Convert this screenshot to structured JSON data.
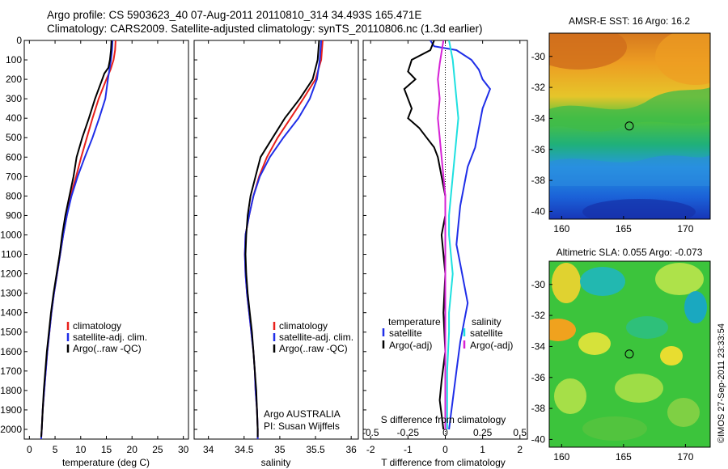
{
  "header": {
    "line1": "Argo profile: CS 5903623_40 07-Aug-2011 20110810_314 34.493S 165.471E",
    "line2": "Climatology: CARS2009. Satellite-adjusted climatology: synTS_20110806.nc (1.3d earlier)"
  },
  "stamp": "©IMOS 27-Sep-2011 23:33:54",
  "colors": {
    "climatology": "#e8201c",
    "satellite": "#1f2ee8",
    "argo": "#000000",
    "sat_salinity": "#1ee0e0",
    "argo_salinity": "#d622d6"
  },
  "chart_data": [
    {
      "type": "line",
      "xlabel": "temperature (deg C)",
      "ylabel": "",
      "xlim": [
        -1,
        31
      ],
      "ylim": [
        2050,
        0
      ],
      "xticks": [
        0,
        5,
        10,
        15,
        20,
        25,
        30
      ],
      "yticks": [
        0,
        100,
        200,
        300,
        400,
        500,
        600,
        700,
        800,
        900,
        1000,
        1100,
        1200,
        1300,
        1400,
        1500,
        1600,
        1700,
        1800,
        1900,
        2000
      ],
      "legend": [
        "climatology",
        "satellite-adj. clim.",
        "Argo(..raw -QC)"
      ],
      "series": [
        {
          "name": "climatology",
          "color": "#e8201c",
          "points": [
            [
              16.8,
              0
            ],
            [
              16.7,
              50
            ],
            [
              16.4,
              100
            ],
            [
              15.8,
              150
            ],
            [
              15.0,
              200
            ],
            [
              13.5,
              300
            ],
            [
              12.3,
              400
            ],
            [
              11.2,
              500
            ],
            [
              10.1,
              600
            ],
            [
              9.1,
              700
            ],
            [
              8.0,
              800
            ],
            [
              7.3,
              900
            ],
            [
              6.6,
              1000
            ],
            [
              6.0,
              1100
            ],
            [
              5.4,
              1200
            ],
            [
              4.8,
              1300
            ],
            [
              4.3,
              1400
            ],
            [
              3.9,
              1500
            ],
            [
              3.5,
              1600
            ],
            [
              3.2,
              1700
            ],
            [
              2.9,
              1800
            ],
            [
              2.6,
              1900
            ],
            [
              2.4,
              2000
            ],
            [
              2.3,
              2050
            ]
          ]
        },
        {
          "name": "satellite-adj. clim.",
          "color": "#1f2ee8",
          "points": [
            [
              16.2,
              0
            ],
            [
              16.1,
              50
            ],
            [
              15.9,
              100
            ],
            [
              15.6,
              150
            ],
            [
              15.3,
              200
            ],
            [
              14.8,
              300
            ],
            [
              13.6,
              400
            ],
            [
              12.3,
              500
            ],
            [
              10.8,
              600
            ],
            [
              9.4,
              700
            ],
            [
              8.2,
              800
            ],
            [
              7.3,
              900
            ],
            [
              6.6,
              1000
            ],
            [
              6.0,
              1100
            ],
            [
              5.4,
              1200
            ],
            [
              4.8,
              1300
            ],
            [
              4.3,
              1400
            ],
            [
              3.9,
              1500
            ],
            [
              3.5,
              1600
            ],
            [
              3.2,
              1700
            ],
            [
              2.9,
              1800
            ],
            [
              2.6,
              1900
            ],
            [
              2.4,
              2000
            ],
            [
              2.3,
              2050
            ]
          ]
        },
        {
          "name": "Argo(..raw -QC)",
          "color": "#000000",
          "points": [
            [
              16.0,
              0
            ],
            [
              15.9,
              50
            ],
            [
              15.7,
              100
            ],
            [
              15.4,
              140
            ],
            [
              14.6,
              170
            ],
            [
              14.2,
              200
            ],
            [
              12.8,
              300
            ],
            [
              11.6,
              400
            ],
            [
              10.3,
              500
            ],
            [
              9.2,
              600
            ],
            [
              8.6,
              700
            ],
            [
              7.8,
              800
            ],
            [
              7.0,
              900
            ],
            [
              6.4,
              1000
            ],
            [
              5.9,
              1100
            ],
            [
              5.3,
              1200
            ],
            [
              4.7,
              1300
            ],
            [
              4.2,
              1400
            ],
            [
              3.8,
              1500
            ],
            [
              3.4,
              1600
            ],
            [
              3.1,
              1700
            ],
            [
              2.8,
              1800
            ],
            [
              2.6,
              1900
            ],
            [
              2.4,
              2000
            ],
            [
              2.3,
              2040
            ]
          ]
        }
      ]
    },
    {
      "type": "line",
      "xlabel": "salinity",
      "xlim": [
        33.8,
        36.1
      ],
      "ylim": [
        2050,
        0
      ],
      "xticks": [
        34,
        34.5,
        35,
        35.5,
        36
      ],
      "xticklabels": [
        "34",
        "34.5",
        "35",
        "35.5",
        "36"
      ],
      "legend": [
        "climatology",
        "satellite-adj. clim.",
        "Argo(..raw -QC)"
      ],
      "annotation": [
        "Argo AUSTRALIA",
        "PI: Susan Wijffels"
      ],
      "series": [
        {
          "name": "climatology",
          "color": "#e8201c",
          "points": [
            [
              35.6,
              0
            ],
            [
              35.58,
              100
            ],
            [
              35.5,
              200
            ],
            [
              35.33,
              300
            ],
            [
              35.15,
              400
            ],
            [
              34.97,
              500
            ],
            [
              34.82,
              600
            ],
            [
              34.71,
              700
            ],
            [
              34.63,
              800
            ],
            [
              34.57,
              900
            ],
            [
              34.52,
              1000
            ],
            [
              34.51,
              1100
            ],
            [
              34.52,
              1200
            ],
            [
              34.54,
              1300
            ],
            [
              34.57,
              1400
            ],
            [
              34.6,
              1500
            ],
            [
              34.63,
              1600
            ],
            [
              34.65,
              1700
            ],
            [
              34.66,
              1800
            ],
            [
              34.68,
              1900
            ],
            [
              34.69,
              2000
            ],
            [
              34.69,
              2050
            ]
          ]
        },
        {
          "name": "satellite-adj. clim.",
          "color": "#1f2ee8",
          "points": [
            [
              35.58,
              0
            ],
            [
              35.56,
              100
            ],
            [
              35.52,
              200
            ],
            [
              35.42,
              300
            ],
            [
              35.26,
              400
            ],
            [
              35.05,
              500
            ],
            [
              34.86,
              600
            ],
            [
              34.72,
              700
            ],
            [
              34.63,
              800
            ],
            [
              34.57,
              900
            ],
            [
              34.52,
              1000
            ],
            [
              34.51,
              1100
            ],
            [
              34.52,
              1200
            ],
            [
              34.54,
              1300
            ],
            [
              34.57,
              1400
            ],
            [
              34.6,
              1500
            ],
            [
              34.63,
              1600
            ],
            [
              34.65,
              1700
            ],
            [
              34.66,
              1800
            ],
            [
              34.68,
              1900
            ],
            [
              34.69,
              2000
            ],
            [
              34.69,
              2050
            ]
          ]
        },
        {
          "name": "Argo(..raw -QC)",
          "color": "#000000",
          "points": [
            [
              35.55,
              0
            ],
            [
              35.53,
              100
            ],
            [
              35.46,
              200
            ],
            [
              35.28,
              300
            ],
            [
              35.07,
              400
            ],
            [
              34.9,
              500
            ],
            [
              34.73,
              600
            ],
            [
              34.66,
              700
            ],
            [
              34.59,
              800
            ],
            [
              34.55,
              900
            ],
            [
              34.53,
              1000
            ],
            [
              34.52,
              1100
            ],
            [
              34.53,
              1200
            ],
            [
              34.55,
              1300
            ],
            [
              34.58,
              1400
            ],
            [
              34.61,
              1500
            ],
            [
              34.63,
              1600
            ],
            [
              34.65,
              1700
            ],
            [
              34.67,
              1800
            ],
            [
              34.68,
              1900
            ],
            [
              34.69,
              2000
            ],
            [
              34.69,
              2040
            ]
          ]
        }
      ]
    },
    {
      "type": "line",
      "xlabel": "T difference from climatology",
      "xlabel_top": "S difference from climatology",
      "xlim": [
        -2.2,
        2.2
      ],
      "ylim": [
        2050,
        0
      ],
      "xticks": [
        -2,
        -1,
        0,
        1,
        2
      ],
      "xticks_top": [
        -0.5,
        -0.25,
        0,
        0.25,
        0.5
      ],
      "xticklabels_top": [
        "-0.5",
        "-0.25",
        "0",
        "0.25",
        "0.5"
      ],
      "legend_temperature": [
        "temperature",
        "satellite",
        "Argo(-adj)"
      ],
      "legend_salinity": [
        "salinity",
        "satellite",
        "Argo(-adj)"
      ],
      "series": [
        {
          "name": "temperature satellite",
          "color": "#1f2ee8",
          "points": [
            [
              -0.4,
              0
            ],
            [
              -0.3,
              30
            ],
            [
              0.3,
              50
            ],
            [
              0.7,
              100
            ],
            [
              0.9,
              150
            ],
            [
              1.0,
              200
            ],
            [
              1.2,
              250
            ],
            [
              1.0,
              350
            ],
            [
              0.9,
              450
            ],
            [
              0.8,
              550
            ],
            [
              0.6,
              650
            ],
            [
              0.5,
              750
            ],
            [
              0.4,
              850
            ],
            [
              0.35,
              950
            ],
            [
              0.3,
              1050
            ],
            [
              0.4,
              1150
            ],
            [
              0.5,
              1250
            ],
            [
              0.6,
              1350
            ],
            [
              0.5,
              1450
            ],
            [
              0.4,
              1550
            ],
            [
              0.3,
              1700
            ],
            [
              0.2,
              1850
            ],
            [
              0.1,
              2000
            ]
          ]
        },
        {
          "name": "temperature Argo(-adj)",
          "color": "#000000",
          "points": [
            [
              -0.3,
              0
            ],
            [
              -0.4,
              50
            ],
            [
              -0.9,
              100
            ],
            [
              -1.0,
              160
            ],
            [
              -0.8,
              200
            ],
            [
              -1.1,
              250
            ],
            [
              -1.0,
              300
            ],
            [
              -0.9,
              350
            ],
            [
              -1.0,
              400
            ],
            [
              -0.7,
              450
            ],
            [
              -0.5,
              500
            ],
            [
              -0.3,
              550
            ],
            [
              -0.2,
              600
            ],
            [
              -0.1,
              700
            ],
            [
              0.0,
              800
            ],
            [
              0.0,
              900
            ],
            [
              -0.1,
              1000
            ],
            [
              -0.05,
              1100
            ],
            [
              0.0,
              1200
            ],
            [
              -0.05,
              1400
            ],
            [
              0.0,
              1600
            ],
            [
              -0.1,
              1750
            ],
            [
              -0.15,
              1850
            ],
            [
              -0.05,
              2000
            ]
          ]
        },
        {
          "name": "salinity satellite",
          "color": "#1ee0e0",
          "points": [
            [
              0.1,
              0
            ],
            [
              0.2,
              100
            ],
            [
              0.25,
              200
            ],
            [
              0.3,
              300
            ],
            [
              0.35,
              400
            ],
            [
              0.3,
              500
            ],
            [
              0.25,
              600
            ],
            [
              0.2,
              700
            ],
            [
              0.15,
              800
            ],
            [
              0.1,
              900
            ],
            [
              0.1,
              1000
            ],
            [
              0.15,
              1100
            ],
            [
              0.2,
              1200
            ],
            [
              0.15,
              1300
            ],
            [
              0.1,
              1400
            ],
            [
              0.1,
              1500
            ],
            [
              0.05,
              1700
            ],
            [
              0.05,
              1900
            ],
            [
              0.05,
              2000
            ]
          ]
        },
        {
          "name": "salinity Argo(-adj)",
          "color": "#d622d6",
          "points": [
            [
              -0.05,
              0
            ],
            [
              -0.1,
              60
            ],
            [
              -0.15,
              120
            ],
            [
              -0.2,
              200
            ],
            [
              -0.15,
              300
            ],
            [
              -0.2,
              400
            ],
            [
              -0.15,
              500
            ],
            [
              -0.1,
              600
            ],
            [
              -0.05,
              700
            ],
            [
              0.0,
              800
            ],
            [
              0.0,
              1000
            ],
            [
              0.0,
              1200
            ],
            [
              0.0,
              1400
            ],
            [
              0.0,
              1600
            ],
            [
              0.0,
              1800
            ],
            [
              0.0,
              2000
            ]
          ]
        }
      ]
    },
    {
      "type": "heatmap",
      "title": "AMSR-E SST: 16 Argo: 16.2",
      "xlim": [
        159,
        172
      ],
      "ylim": [
        -40.5,
        -28.5
      ],
      "xticks": [
        160,
        165,
        170
      ],
      "yticks": [
        -30,
        -32,
        -34,
        -36,
        -38,
        -40
      ],
      "marker": [
        165.47,
        -34.49
      ]
    },
    {
      "type": "heatmap",
      "title": "Altimetric SLA: 0.055 Argo: -0.073",
      "xlim": [
        159,
        172
      ],
      "ylim": [
        -40.5,
        -28.5
      ],
      "xticks": [
        160,
        165,
        170
      ],
      "yticks": [
        -30,
        -32,
        -34,
        -36,
        -38,
        -40
      ],
      "marker": [
        165.47,
        -34.49
      ]
    }
  ]
}
